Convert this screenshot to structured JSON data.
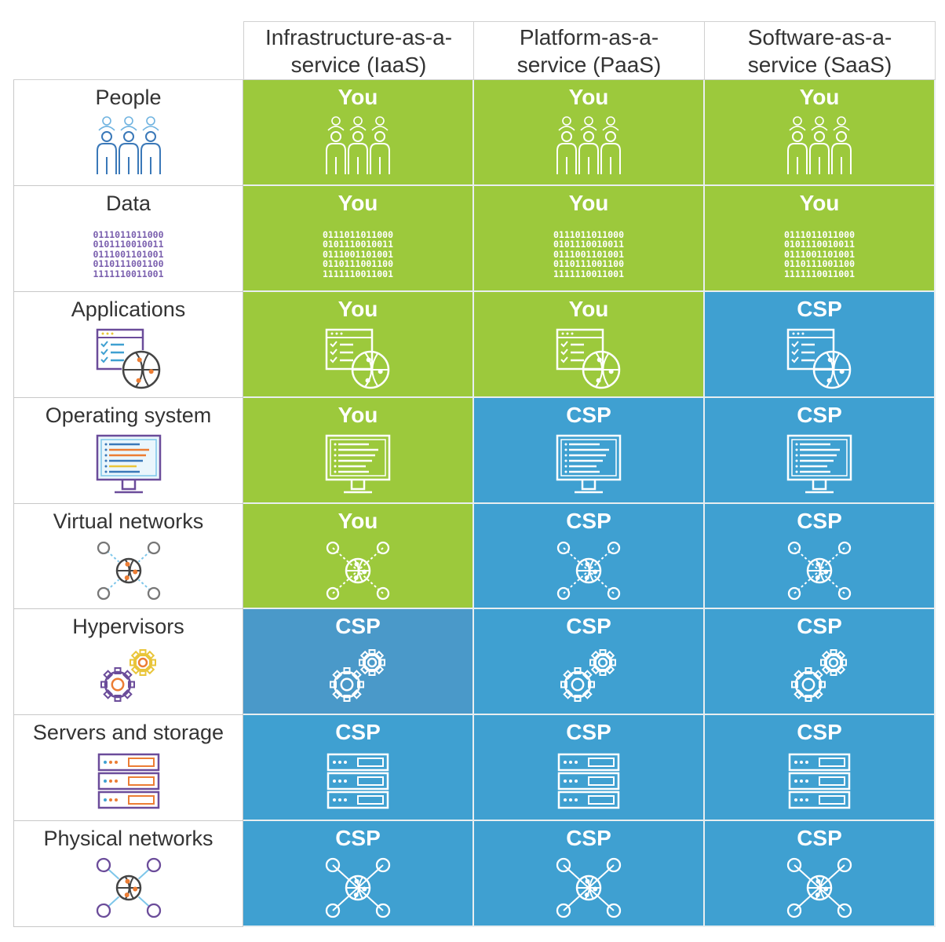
{
  "colors": {
    "you": "#9cc93c",
    "csp": "#3fa0d1",
    "csp_alt": "#4a99c9",
    "label_icon_purple": "#6b4c9a",
    "label_icon_blue": "#3a78b8",
    "label_icon_orange": "#ec7d34"
  },
  "columns": [
    "Infrastructure-as-a-service (IaaS)",
    "Platform-as-a-service (PaaS)",
    "Software-as-a-service (SaaS)"
  ],
  "columns_lines": [
    [
      "Infrastructure-as-a-",
      "service (IaaS)"
    ],
    [
      "Platform-as-a-",
      "service (PaaS)"
    ],
    [
      "Software-as-a-",
      "service (SaaS)"
    ]
  ],
  "binary": [
    "0111011011000",
    "0101110010011",
    "0111001101001",
    "0110111001100",
    "1111110011001"
  ],
  "rows": [
    {
      "label": "People",
      "icon": "people-icon",
      "cells": [
        "You",
        "You",
        "You"
      ]
    },
    {
      "label": "Data",
      "icon": "binary-data-icon",
      "cells": [
        "You",
        "You",
        "You"
      ]
    },
    {
      "label": "Applications",
      "icon": "application-globe-icon",
      "cells": [
        "You",
        "You",
        "CSP"
      ]
    },
    {
      "label": "Operating system",
      "icon": "monitor-icon",
      "cells": [
        "You",
        "CSP",
        "CSP"
      ]
    },
    {
      "label": "Virtual networks",
      "icon": "network-hub-icon",
      "cells": [
        "You",
        "CSP",
        "CSP"
      ]
    },
    {
      "label": "Hypervisors",
      "icon": "gears-icon",
      "cells": [
        "CSP",
        "CSP",
        "CSP"
      ]
    },
    {
      "label": "Servers and storage",
      "icon": "server-rack-icon",
      "cells": [
        "CSP",
        "CSP",
        "CSP"
      ]
    },
    {
      "label": "Physical networks",
      "icon": "physical-network-icon",
      "cells": [
        "CSP",
        "CSP",
        "CSP"
      ]
    }
  ]
}
